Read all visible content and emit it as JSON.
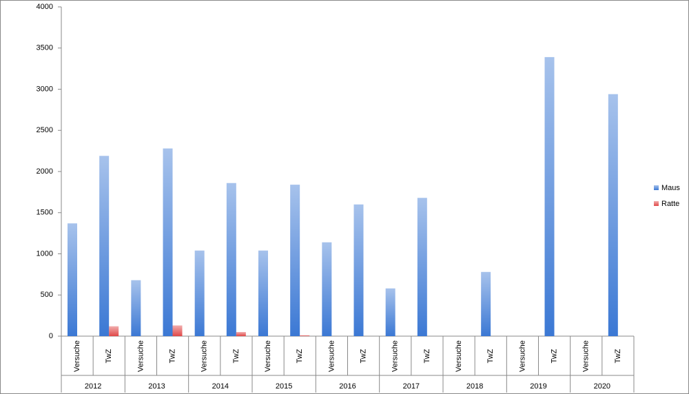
{
  "chart_data": {
    "type": "bar",
    "categories": [
      "Versuche",
      "TwZ",
      "Versuche",
      "TwZ",
      "Versuche",
      "TwZ",
      "Versuche",
      "TwZ",
      "Versuche",
      "TwZ",
      "Versuche",
      "TwZ",
      "Versuche",
      "TwZ",
      "Versuche",
      "TwZ",
      "Versuche",
      "TwZ"
    ],
    "category_groups": [
      "2012",
      "2013",
      "2014",
      "2015",
      "2016",
      "2017",
      "2018",
      "2019",
      "2020"
    ],
    "series": [
      {
        "name": "Maus",
        "color": "#3b78d4",
        "values": [
          1370,
          2190,
          680,
          2280,
          1040,
          1860,
          1040,
          1840,
          1140,
          1600,
          580,
          1680,
          0,
          780,
          0,
          3390,
          0,
          2940
        ]
      },
      {
        "name": "Ratte",
        "color": "#e04848",
        "values": [
          0,
          120,
          0,
          130,
          0,
          50,
          0,
          10,
          0,
          0,
          0,
          0,
          0,
          0,
          0,
          0,
          0,
          0
        ]
      }
    ],
    "ylim": [
      0,
      4000
    ],
    "yticks": [
      0,
      500,
      1000,
      1500,
      2000,
      2500,
      3000,
      3500,
      4000
    ],
    "grid": false,
    "legend": "right"
  }
}
